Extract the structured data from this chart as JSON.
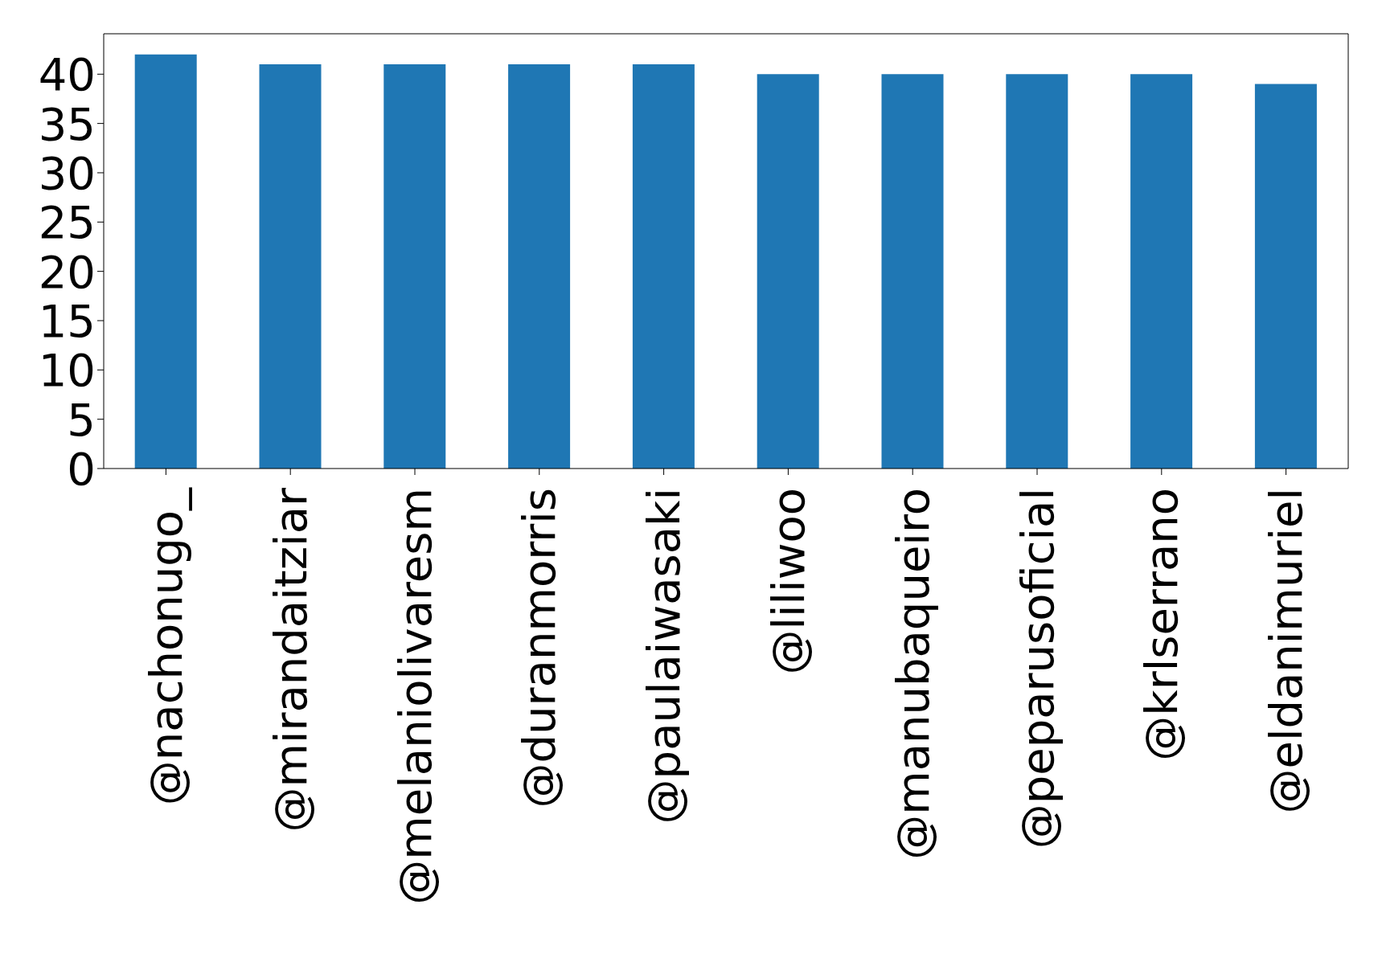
{
  "chart_data": {
    "type": "bar",
    "categories": [
      "@nachonugo_",
      "@mirandaitziar",
      "@melaniolivaresm",
      "@duranmorris",
      "@paulaiwasaki",
      "@liliwoo",
      "@manubaqueiro",
      "@peparusoficial",
      "@krlserrano",
      "@eldanimuriel"
    ],
    "values": [
      42,
      41,
      41,
      41,
      41,
      40,
      40,
      40,
      40,
      39
    ],
    "color": "#1f77b4",
    "ylim": [
      0,
      44.1
    ],
    "yticks": [
      0,
      5,
      10,
      15,
      20,
      25,
      30,
      35,
      40
    ],
    "grid": false
  }
}
